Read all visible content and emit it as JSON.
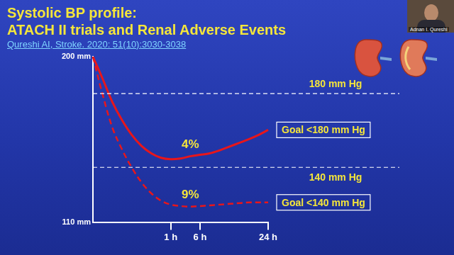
{
  "chart_data": {
    "type": "line",
    "title": "Systolic BP profile:",
    "subtitle": "ATACH II trials and Renal Adverse Events",
    "source": "Qureshi AI, Stroke. 2020: 51(10):3030-3038",
    "categories": [
      null,
      null,
      null,
      null,
      null,
      null,
      null,
      null,
      "1 h",
      null,
      null,
      "6 h",
      null,
      null,
      null,
      null,
      null,
      null,
      "24 h"
    ],
    "series": [
      {
        "name": "Goal <180 mm Hg",
        "color": "#e8161b",
        "line_style": "solid",
        "values": [
          200,
          188,
          175.4,
          165.5,
          157.5,
          151.6,
          147.6,
          145.2,
          144.4,
          144.8,
          146,
          146.8,
          147.6,
          149.2,
          151.2,
          153.2,
          155.2,
          157.5,
          160.3
        ]
      },
      {
        "name": "Goal <140 mm Hg",
        "color": "#e8161b",
        "line_style": "dashed",
        "values": [
          200,
          179.4,
          161.5,
          149.6,
          139.8,
          131.8,
          125.9,
          121.9,
          119.8,
          119,
          118.7,
          119,
          119.4,
          119.8,
          120.2,
          120.6,
          121,
          121,
          121
        ]
      }
    ],
    "ylim": [
      110,
      200
    ],
    "yticks": [
      {
        "value": 110,
        "label": "110 mm"
      },
      {
        "value": 200,
        "label": "200 mm"
      }
    ],
    "grid": false,
    "reference_lines": [
      {
        "value": 180,
        "label": "180 mm Hg"
      },
      {
        "value": 140,
        "label": "140 mm Hg"
      }
    ],
    "annotations": [
      {
        "text": "4%",
        "series": 0
      },
      {
        "text": "9%",
        "series": 1
      }
    ]
  },
  "speaker": "Adnan I. Qureshi"
}
